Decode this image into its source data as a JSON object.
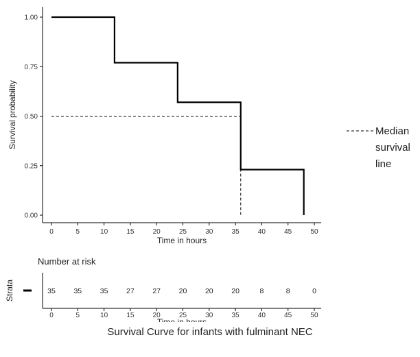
{
  "caption": "Survival Curve for infants with fulminant NEC",
  "chart_data": {
    "type": "step",
    "ylabel": "Survival probability",
    "xlabel": "Time in hours",
    "xlim": [
      0,
      50
    ],
    "ylim": [
      0,
      1
    ],
    "x_ticks": [
      "0",
      "5",
      "10",
      "15",
      "20",
      "25",
      "30",
      "35",
      "40",
      "45",
      "50"
    ],
    "y_ticks": [
      "0.00",
      "0.25",
      "0.50",
      "0.75",
      "1.00"
    ],
    "grid": false,
    "series": [
      {
        "type": "step",
        "x": [
          0,
          12,
          24,
          36,
          48
        ],
        "y": [
          1.0,
          0.77,
          0.57,
          0.23,
          0.0
        ],
        "color": "#000000"
      }
    ],
    "median_line": {
      "y": 0.5,
      "x": 36,
      "legend_label": "Median survival line",
      "legend_lines": [
        "Median",
        "survival",
        "line"
      ],
      "style": "dashed"
    },
    "risk_table": {
      "title": "Number at risk",
      "strata_label": "Strata",
      "x_label": "Time in hours",
      "times": [
        0,
        5,
        10,
        15,
        20,
        25,
        30,
        35,
        40,
        45,
        50
      ],
      "x_ticks": [
        "0",
        "5",
        "10",
        "15",
        "20",
        "25",
        "30",
        "35",
        "40",
        "45",
        "50"
      ],
      "counts": [
        "35",
        "35",
        "35",
        "27",
        "27",
        "20",
        "20",
        "20",
        "8",
        "8",
        "0"
      ]
    }
  }
}
